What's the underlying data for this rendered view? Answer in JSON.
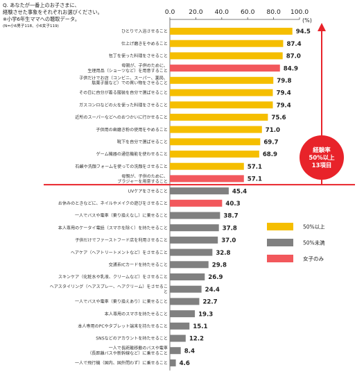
{
  "question": {
    "line1": "Q. あなたが一番上のお子さまに、",
    "line2": "経験させた事象をそれぞれお選びください。",
    "line3": "※小学6年生ママへの聴取データ。",
    "line4": "(N=小6男子118、小6女子119)"
  },
  "legend": {
    "items": [
      {
        "label": "50%以上",
        "color": "#F5BE00"
      },
      {
        "label": "50%未満",
        "color": "#808080"
      },
      {
        "label": "女子のみ",
        "color": "#F2585C"
      }
    ]
  },
  "callout": {
    "line1": "経験率",
    "line2": "50%以上",
    "line3": "13項目",
    "color": "#E8232A"
  },
  "chart_data": {
    "type": "bar",
    "orientation": "horizontal",
    "xlim": [
      0,
      100
    ],
    "xticks": [
      "0.0",
      "20.0",
      "40.0",
      "60.0",
      "80.0",
      "100.0"
    ],
    "unit_label": "(%)",
    "categories": [
      {
        "label": [
          "ひとりで入浴させること"
        ],
        "value": "94.5",
        "group": "ge50"
      },
      {
        "label": [
          "仕上げ磨きをやめること"
        ],
        "value": "87.4",
        "group": "ge50"
      },
      {
        "label": [
          "包丁を使った料理をさせること"
        ],
        "value": "87.0",
        "group": "ge50"
      },
      {
        "label": [
          "母親が、子供のために、",
          "生理用品（ショーツなど）を用意すること"
        ],
        "value": "84.9",
        "group": "girls"
      },
      {
        "label": [
          "子供だけでお店（コンビニ、スーパー、薬局、",
          "駄菓子屋など）での買い物をさせること"
        ],
        "value": "79.8",
        "group": "ge50"
      },
      {
        "label": [
          "その日に自分が着る服装を自分で選ばせること"
        ],
        "value": "79.4",
        "group": "ge50"
      },
      {
        "label": [
          "ガスコンロなどの火を使った料理をさせること"
        ],
        "value": "79.4",
        "group": "ge50"
      },
      {
        "label": [
          "近所のスーパーなどへのおつかいに行かせること"
        ],
        "value": "75.6",
        "group": "ge50"
      },
      {
        "label": [
          "子供用の歯磨き粉の使用をやめること"
        ],
        "value": "71.0",
        "group": "ge50"
      },
      {
        "label": [
          "靴下を自分で選ばせること"
        ],
        "value": "69.7",
        "group": "ge50"
      },
      {
        "label": [
          "ゲーム機器の通信機能を使わせること"
        ],
        "value": "68.9",
        "group": "ge50"
      },
      {
        "label": [
          "石鹸や洗顔フォームを使っての洗顔をさせること"
        ],
        "value": "57.1",
        "group": "ge50"
      },
      {
        "label": [
          "母親が、子供のために、",
          "ブラジャーを用意すること"
        ],
        "value": "57.1",
        "group": "girls"
      },
      {
        "label": [
          "UVケアをさせること"
        ],
        "value": "45.4",
        "group": "lt50"
      },
      {
        "label": [
          "お休みのときなどに、ネイルやメイクの遊びをさせること"
        ],
        "value": "40.3",
        "group": "girls"
      },
      {
        "label": [
          "一人でバスや電車（乗り換えなし）に乗せること"
        ],
        "value": "38.7",
        "group": "lt50"
      },
      {
        "label": [
          "本人専用のケータイ電話（スマホを除く）を持たせること"
        ],
        "value": "37.8",
        "group": "lt50"
      },
      {
        "label": [
          "子供だけでファーストフード店を利用させること"
        ],
        "value": "37.0",
        "group": "lt50"
      },
      {
        "label": [
          "ヘアケア（ヘアトリートメントなど）をさせること"
        ],
        "value": "32.8",
        "group": "lt50"
      },
      {
        "label": [
          "交通系ICカードを持たせること"
        ],
        "value": "29.8",
        "group": "lt50"
      },
      {
        "label": [
          "スキンケア（化粧水や乳液、クリームなど）をさせること"
        ],
        "value": "26.9",
        "group": "lt50"
      },
      {
        "label": [
          "ヘアスタイリング（ヘアスプレー、ヘアクリーム）をさせるこ",
          "と"
        ],
        "value": "24.4",
        "group": "lt50"
      },
      {
        "label": [
          "一人でバスや電車（乗り換えあり）に乗せること"
        ],
        "value": "22.7",
        "group": "lt50"
      },
      {
        "label": [
          "本人専用のスマホを持たせること"
        ],
        "value": "19.3",
        "group": "lt50"
      },
      {
        "label": [
          "本人専用のPCやタブレット端末を持たせること"
        ],
        "value": "15.1",
        "group": "lt50"
      },
      {
        "label": [
          "SNSなどのアカウントを持たせること"
        ],
        "value": "12.2",
        "group": "lt50"
      },
      {
        "label": [
          "一人で長距離移動のバスや電車",
          "（長距離バスや新幹線など）に乗せること"
        ],
        "value": "8.4",
        "group": "lt50"
      },
      {
        "label": [
          "一人で飛行機（国内、国外問わず）に乗せること"
        ],
        "value": "4.6",
        "group": "lt50"
      }
    ],
    "group_colors": {
      "ge50": "#F5BE00",
      "lt50": "#808080",
      "girls": "#F2585C"
    }
  }
}
